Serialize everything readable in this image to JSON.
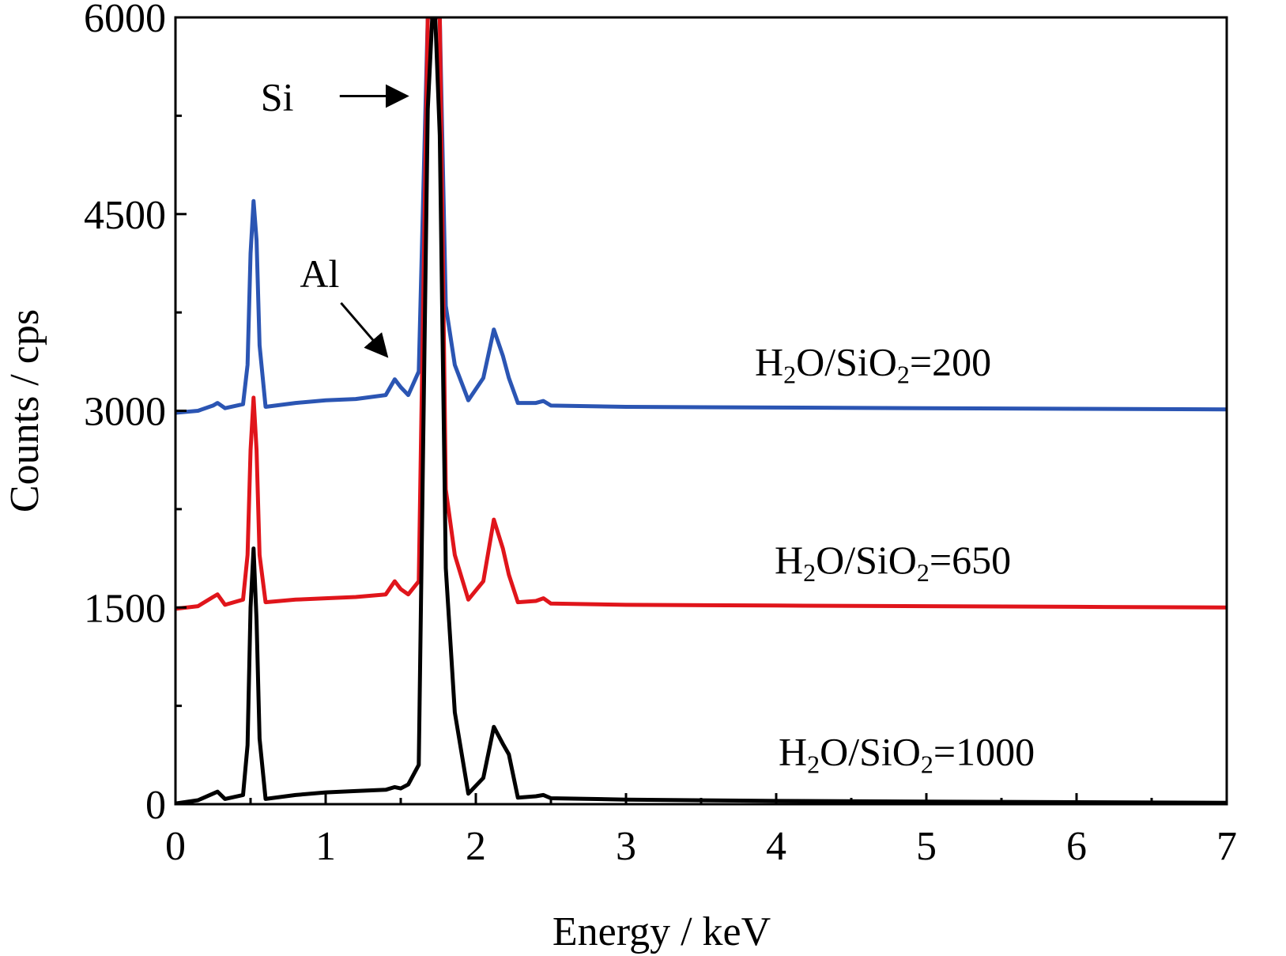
{
  "chart_data": {
    "type": "line",
    "xlabel": "Energy / keV",
    "ylabel": "Counts / cps",
    "xlim": [
      0,
      7
    ],
    "ylim": [
      0,
      6000
    ],
    "x_ticks": [
      "0",
      "1",
      "2",
      "3",
      "4",
      "5",
      "6",
      "7"
    ],
    "y_ticks": [
      "0",
      "1500",
      "3000",
      "4500",
      "6000"
    ],
    "grid": false,
    "legend": "none",
    "series": [
      {
        "label_main": "H",
        "label_sub": "2",
        "label_mid": "O/SiO",
        "label_sub2": "2",
        "label_end": "=200",
        "color": "#2b55b3",
        "x": [
          0.0,
          0.15,
          0.25,
          0.28,
          0.33,
          0.45,
          0.48,
          0.5,
          0.52,
          0.54,
          0.56,
          0.6,
          0.8,
          1.0,
          1.2,
          1.4,
          1.46,
          1.5,
          1.55,
          1.62,
          1.68,
          1.71,
          1.73,
          1.76,
          1.8,
          1.86,
          1.95,
          2.05,
          2.12,
          2.18,
          2.22,
          2.28,
          2.4,
          2.45,
          2.5,
          3.0,
          4.0,
          5.0,
          6.0,
          7.0
        ],
        "y": [
          2985,
          3000,
          3040,
          3060,
          3020,
          3050,
          3350,
          4200,
          4600,
          4300,
          3500,
          3030,
          3060,
          3080,
          3090,
          3120,
          3240,
          3180,
          3120,
          3300,
          6000,
          6000,
          6000,
          6000,
          3800,
          3350,
          3080,
          3250,
          3620,
          3420,
          3250,
          3060,
          3060,
          3075,
          3040,
          3030,
          3025,
          3020,
          3015,
          3010
        ]
      },
      {
        "label_main": "H",
        "label_sub": "2",
        "label_mid": "O/SiO",
        "label_sub2": "2",
        "label_end": "=650",
        "color": "#e0151b",
        "x": [
          0.0,
          0.15,
          0.25,
          0.28,
          0.33,
          0.45,
          0.48,
          0.5,
          0.52,
          0.54,
          0.56,
          0.6,
          0.8,
          1.0,
          1.2,
          1.4,
          1.46,
          1.5,
          1.55,
          1.62,
          1.68,
          1.71,
          1.73,
          1.76,
          1.8,
          1.86,
          1.95,
          2.05,
          2.12,
          2.18,
          2.22,
          2.28,
          2.4,
          2.45,
          2.5,
          3.0,
          4.0,
          5.0,
          6.0,
          7.0
        ],
        "y": [
          1490,
          1510,
          1580,
          1600,
          1520,
          1560,
          1900,
          2700,
          3100,
          2700,
          1900,
          1540,
          1560,
          1570,
          1580,
          1600,
          1700,
          1640,
          1600,
          1700,
          6000,
          6000,
          6000,
          6000,
          2400,
          1900,
          1560,
          1700,
          2170,
          1950,
          1750,
          1540,
          1550,
          1570,
          1530,
          1520,
          1515,
          1510,
          1505,
          1500
        ]
      },
      {
        "label_main": "H",
        "label_sub": "2",
        "label_mid": "O/SiO",
        "label_sub2": "2",
        "label_end": "=1000",
        "color": "#000000",
        "x": [
          0.0,
          0.15,
          0.25,
          0.28,
          0.33,
          0.45,
          0.48,
          0.5,
          0.52,
          0.54,
          0.56,
          0.6,
          0.8,
          1.0,
          1.2,
          1.4,
          1.46,
          1.5,
          1.55,
          1.62,
          1.68,
          1.71,
          1.73,
          1.76,
          1.8,
          1.86,
          1.95,
          2.05,
          2.12,
          2.18,
          2.22,
          2.28,
          2.4,
          2.45,
          2.5,
          3.0,
          4.0,
          5.0,
          6.0,
          7.0
        ],
        "y": [
          5,
          30,
          80,
          95,
          40,
          70,
          450,
          1500,
          1950,
          1400,
          500,
          40,
          70,
          90,
          100,
          110,
          130,
          120,
          150,
          300,
          5300,
          6000,
          6000,
          5100,
          1800,
          700,
          80,
          200,
          590,
          460,
          380,
          50,
          60,
          70,
          45,
          35,
          25,
          20,
          15,
          10
        ]
      }
    ],
    "annotations": [
      {
        "text": "Si",
        "x": 1.62,
        "y": 5400
      },
      {
        "text": "Al",
        "x": 1.46,
        "y": 3250
      }
    ]
  }
}
